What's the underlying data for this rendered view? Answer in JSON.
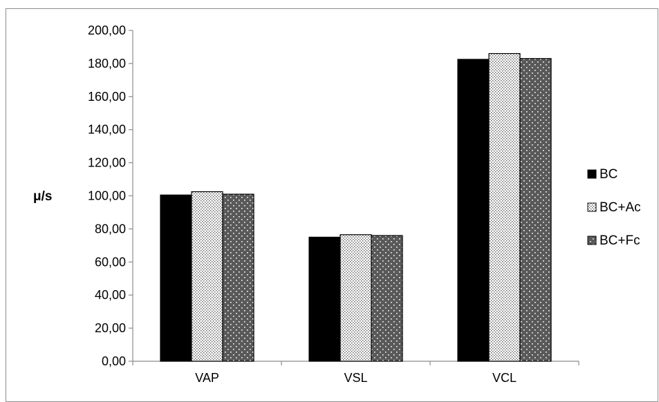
{
  "chart_data": {
    "type": "bar",
    "title": "",
    "xlabel": "",
    "ylabel": "μ/s",
    "categories": [
      "VAP",
      "VSL",
      "VCL"
    ],
    "series": [
      {
        "name": "BC",
        "values": [
          100.5,
          75.0,
          182.5
        ],
        "color": "#000000",
        "pattern": "solid"
      },
      {
        "name": "BC+Ac",
        "values": [
          102.5,
          76.5,
          186.0
        ],
        "color": "#ffffff",
        "pattern": "fine-dots"
      },
      {
        "name": "BC+Fc",
        "values": [
          101.0,
          76.0,
          183.0
        ],
        "color": "#595959",
        "pattern": "white-dots"
      }
    ],
    "ylim": [
      0,
      200
    ],
    "yticks": [
      "0,00",
      "20,00",
      "40,00",
      "60,00",
      "80,00",
      "100,00",
      "120,00",
      "140,00",
      "160,00",
      "180,00",
      "200,00"
    ],
    "grid": false,
    "legend_position": "right"
  }
}
